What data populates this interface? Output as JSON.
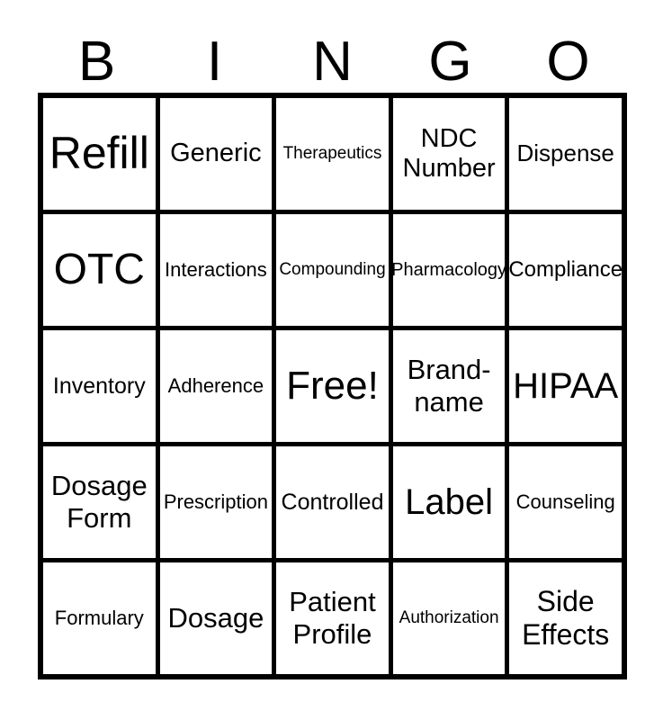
{
  "page": {
    "background_color": "#ffffff",
    "text_color": "#000000",
    "grid_line_color": "#000000"
  },
  "header": {
    "letters": [
      "B",
      "I",
      "N",
      "G",
      "O"
    ]
  },
  "grid": {
    "rows": 5,
    "cols": 5,
    "free_cell_index": 12,
    "cells": [
      {
        "label": "Refill"
      },
      {
        "label": "Generic"
      },
      {
        "label": "Therapeutics"
      },
      {
        "label": "NDC Number"
      },
      {
        "label": "Dispense"
      },
      {
        "label": "OTC"
      },
      {
        "label": "Interactions"
      },
      {
        "label": "Compounding"
      },
      {
        "label": "Pharmacology"
      },
      {
        "label": "Compliance"
      },
      {
        "label": "Inventory"
      },
      {
        "label": "Adherence"
      },
      {
        "label": "Free!"
      },
      {
        "label": "Brand-name"
      },
      {
        "label": "HIPAA"
      },
      {
        "label": "Dosage Form"
      },
      {
        "label": "Prescription"
      },
      {
        "label": "Controlled"
      },
      {
        "label": "Label"
      },
      {
        "label": "Counseling"
      },
      {
        "label": "Formulary"
      },
      {
        "label": "Dosage"
      },
      {
        "label": "Patient Profile"
      },
      {
        "label": "Authorization"
      },
      {
        "label": "Side Effects"
      }
    ]
  }
}
